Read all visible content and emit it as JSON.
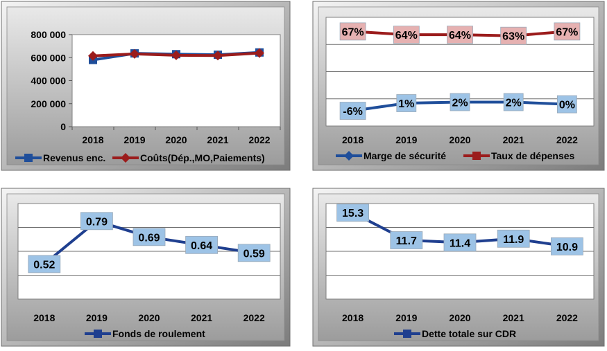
{
  "chart_data": [
    {
      "type": "line",
      "categories": [
        "2018",
        "2019",
        "2020",
        "2021",
        "2022"
      ],
      "ylim": [
        0,
        800000
      ],
      "yticks": [
        "800 000",
        "600 000",
        "400 000",
        "200 000",
        "0"
      ],
      "ytick_values": [
        800000,
        600000,
        400000,
        200000,
        0
      ],
      "grid": false,
      "legend_position": "bottom",
      "series": [
        {
          "name": "Revenus enc.",
          "values": [
            580000,
            637000,
            630000,
            625000,
            645000
          ],
          "color": "#1f4e9a",
          "marker": "square"
        },
        {
          "name": "Coûts(Dép.,MO,Paiements)",
          "values": [
            615000,
            632000,
            620000,
            618000,
            640000
          ],
          "color": "#9b1c1c",
          "marker": "diamond"
        }
      ]
    },
    {
      "type": "line",
      "categories": [
        "2018",
        "2019",
        "2020",
        "2021",
        "2022"
      ],
      "ylim": [
        -20,
        80
      ],
      "grid": true,
      "legend_position": "bottom",
      "series": [
        {
          "name": "Marge de sécurité",
          "values": [
            -6,
            1,
            2,
            2,
            0
          ],
          "labels": [
            "-6%",
            "1%",
            "2%",
            "2%",
            "0%"
          ],
          "color": "#1f4e9a",
          "marker": "diamond",
          "label_bg": "#9dc3e6"
        },
        {
          "name": "Taux de dépenses",
          "values": [
            67,
            64,
            64,
            63,
            67
          ],
          "labels": [
            "67%",
            "64%",
            "64%",
            "63%",
            "67%"
          ],
          "color": "#9b1c1c",
          "marker": "square",
          "label_bg": "#e6b1b1"
        }
      ]
    },
    {
      "type": "line",
      "categories": [
        "2018",
        "2019",
        "2020",
        "2021",
        "2022"
      ],
      "ylim": [
        0.3,
        0.9
      ],
      "grid": true,
      "legend_position": "bottom",
      "series": [
        {
          "name": "Fonds de roulement",
          "values": [
            0.52,
            0.79,
            0.69,
            0.64,
            0.59
          ],
          "labels": [
            "0.52",
            "0.79",
            "0.69",
            "0.64",
            "0.59"
          ],
          "color": "#1f3f8f",
          "marker": "square",
          "label_bg": "#9dc3e6"
        }
      ]
    },
    {
      "type": "line",
      "categories": [
        "2018",
        "2019",
        "2020",
        "2021",
        "2022"
      ],
      "ylim": [
        4,
        16.5
      ],
      "grid": true,
      "legend_position": "bottom",
      "series": [
        {
          "name": "Dette totale sur CDR",
          "values": [
            15.3,
            11.7,
            11.4,
            11.9,
            10.9
          ],
          "labels": [
            "15.3",
            "11.7",
            "11.4",
            "11.9",
            "10.9"
          ],
          "color": "#1f3f8f",
          "marker": "square",
          "label_bg": "#9dc3e6"
        }
      ]
    }
  ]
}
